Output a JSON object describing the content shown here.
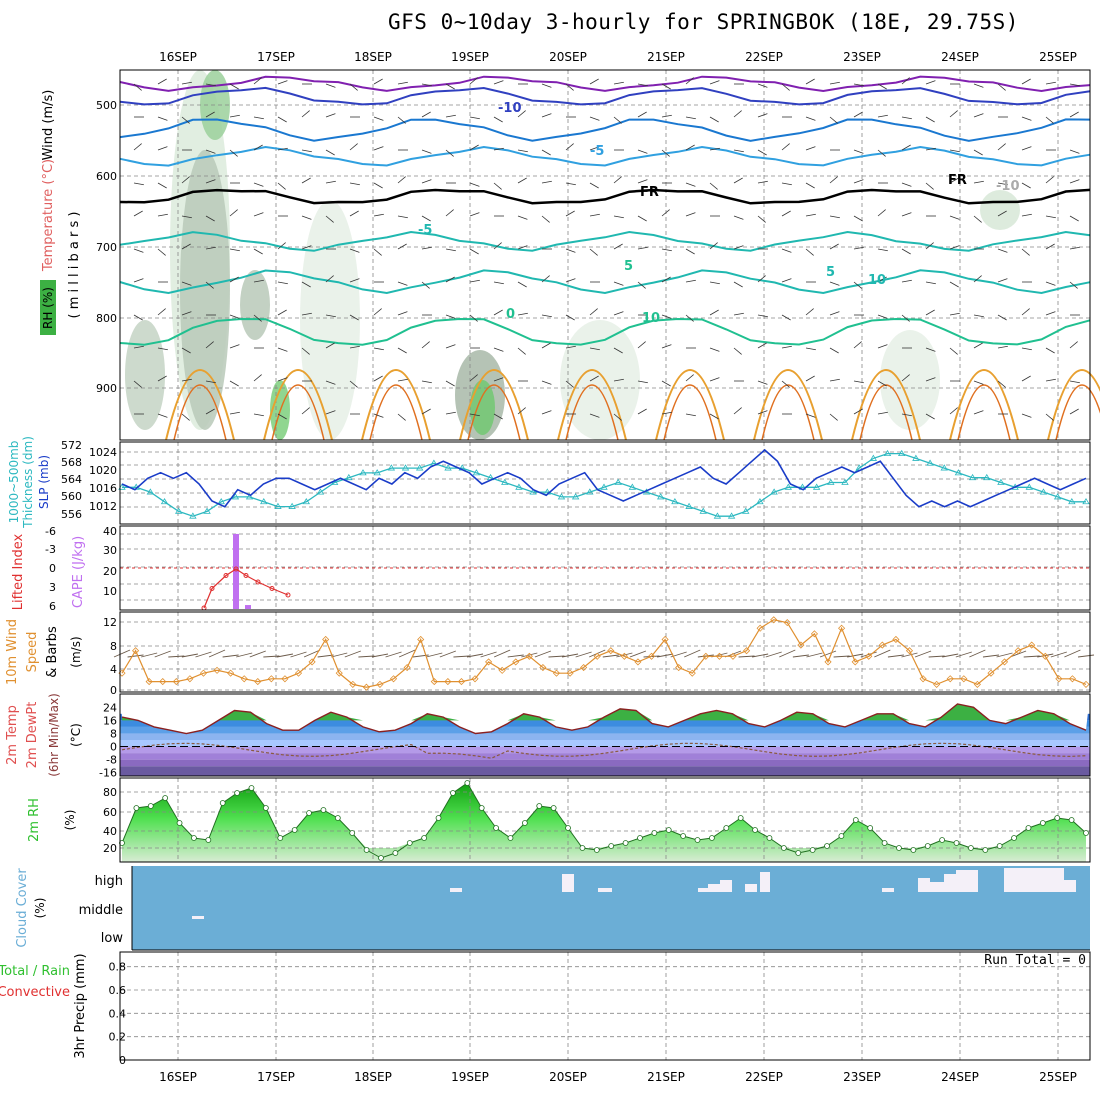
{
  "title": "GFS 0~10day 3-hourly for SPRINGBOK (18E, 29.75S)",
  "colors": {
    "wind_axis": "#000000",
    "temp_axis": "#e06060",
    "rh_bg": "#3cb043",
    "slp": "#1a3cc8",
    "thickness": "#2cb8c0",
    "lifted": "#e03030",
    "cape": "#c070f0",
    "wind10": "#e09030",
    "rh2m": "#30c030",
    "cloud": "#6baed6",
    "precip_total": "#30c030",
    "precip_conv": "#e03030"
  },
  "dates": [
    "16SEP",
    "17SEP",
    "18SEP",
    "19SEP",
    "20SEP",
    "21SEP",
    "22SEP",
    "23SEP",
    "24SEP",
    "25SEP"
  ],
  "panels": {
    "upper": {
      "ylabel_wind": "Wind (m/s)",
      "ylabel_temp": "Temperature (°C)",
      "ylabel_rh": "RH (%)",
      "ylabel_p": "( m i l l i b a r s )",
      "yticks": [
        "500",
        "600",
        "700",
        "800",
        "900"
      ],
      "contour_labels": [
        "-10",
        "-5",
        "FR",
        "FR",
        "-10",
        "-5",
        "5",
        "10",
        "0",
        "10",
        "5"
      ]
    },
    "slp": {
      "ylabel_thk": "1000~500mb",
      "ylabel_thk2": "Thickness (dm)",
      "ylabel_slp": "SLP (mb)",
      "yticks_left": [
        "572",
        "568",
        "564",
        "560",
        "556"
      ],
      "yticks_right": [
        "1024",
        "1020",
        "1016",
        "1012"
      ]
    },
    "cape": {
      "ylabel_li": "Lifted Index",
      "ylabel_cape": "CAPE (J/kg)",
      "yticks_left": [
        "-6",
        "-3",
        "0",
        "3",
        "6"
      ],
      "yticks_right": [
        "40",
        "30",
        "20",
        "10"
      ]
    },
    "wind10": {
      "ylabel1": "10m Wind",
      "ylabel2": "Speed",
      "ylabel3": "& Barbs",
      "ylabel4": "(m/s)",
      "yticks": [
        "12",
        "8",
        "4",
        "0"
      ]
    },
    "temp": {
      "ylabel1": "2m Temp",
      "ylabel2": "2m DewPt",
      "ylabel3": "(6hr Min/Max)",
      "ylabel4": "(°C)",
      "yticks": [
        "24",
        "16",
        "8",
        "0",
        "-8",
        "-16"
      ]
    },
    "rh": {
      "ylabel1": "2m RH",
      "ylabel2": "(%)",
      "yticks": [
        "80",
        "60",
        "40",
        "20"
      ]
    },
    "cloud": {
      "ylabel1": "Cloud Cover",
      "ylabel2": "(%)",
      "levels": [
        "high",
        "middle",
        "low"
      ]
    },
    "precip": {
      "ylabel1": "3hr Precip (mm)",
      "ylabel2": "Total / Rain",
      "ylabel3": "Convective",
      "run_total": "Run Total = 0",
      "yticks": [
        "0.8",
        "0.6",
        "0.4",
        "0.2",
        "0"
      ]
    }
  },
  "chart_data": [
    {
      "type": "line",
      "name": "slp",
      "series": [
        {
          "name": "SLP (mb)",
          "values": [
            1018,
            1017,
            1019,
            1020,
            1019,
            1020,
            1018,
            1015,
            1014,
            1017,
            1016,
            1018,
            1019,
            1019,
            1018,
            1017,
            1018,
            1019,
            1018,
            1017,
            1019,
            1018,
            1020,
            1019,
            1021,
            1022,
            1021,
            1020,
            1018,
            1019,
            1020,
            1019,
            1017,
            1016,
            1018,
            1019,
            1020,
            1017,
            1016,
            1015,
            1016,
            1017,
            1018,
            1019,
            1020,
            1021,
            1019,
            1018,
            1020,
            1022,
            1024,
            1022,
            1018,
            1017,
            1019,
            1020,
            1021,
            1020,
            1021,
            1022,
            1019,
            1016,
            1014,
            1015,
            1014,
            1015,
            1014,
            1015,
            1016,
            1017,
            1018,
            1019,
            1018,
            1017,
            1018,
            1019
          ]
        }
      ]
    },
    {
      "type": "line",
      "name": "thickness",
      "series": [
        {
          "name": "Thickness (dm)",
          "values": [
            563,
            563,
            562,
            560,
            558,
            557,
            558,
            560,
            561,
            561,
            560,
            559,
            559,
            560,
            562,
            564,
            565,
            566,
            566,
            567,
            567,
            567,
            568,
            567,
            567,
            566,
            565,
            564,
            563,
            562,
            562,
            561,
            561,
            562,
            563,
            564,
            563,
            562,
            561,
            560,
            559,
            558,
            557,
            557,
            558,
            560,
            562,
            563,
            563,
            563,
            564,
            564,
            567,
            569,
            570,
            570,
            569,
            568,
            567,
            566,
            565,
            565,
            564,
            563,
            563,
            562,
            561,
            560,
            560
          ]
        }
      ]
    },
    {
      "type": "bar",
      "name": "cape",
      "x": [
        "16SEP 15z",
        "16SEP 18z"
      ],
      "values": [
        38,
        2
      ]
    },
    {
      "type": "line",
      "name": "lifted_index",
      "x_range": [
        "16SEP 06z",
        "17SEP 12z"
      ],
      "values": [
        6,
        3,
        1,
        0,
        1,
        2,
        3,
        4
      ]
    },
    {
      "type": "line",
      "name": "wind10_speed",
      "values": [
        3,
        7,
        1.5,
        1.5,
        1.5,
        2,
        3,
        3.5,
        3,
        2,
        1.5,
        2,
        2,
        3,
        5,
        9,
        3,
        1,
        0.5,
        1,
        2,
        4,
        9,
        1.5,
        1.5,
        1.5,
        2,
        5,
        3.5,
        5,
        6,
        4,
        3,
        3,
        4,
        6,
        7,
        6,
        5,
        6,
        9,
        4,
        3,
        6,
        6,
        6,
        7,
        11,
        12.5,
        12,
        8,
        10,
        5,
        11,
        5,
        6,
        8,
        9,
        7,
        2,
        1,
        2,
        2,
        1,
        3,
        5,
        7,
        8,
        6,
        2,
        2,
        1
      ]
    },
    {
      "type": "area",
      "name": "temp2m",
      "values": [
        18,
        16,
        12,
        10,
        8,
        10,
        16,
        22,
        21,
        14,
        10,
        10,
        16,
        21,
        18,
        12,
        9,
        10,
        14,
        20,
        18,
        12,
        8,
        9,
        14,
        20,
        18,
        12,
        10,
        12,
        18,
        23,
        22,
        14,
        12,
        16,
        20,
        22,
        20,
        14,
        12,
        16,
        21,
        20,
        14,
        12,
        16,
        20,
        20,
        14,
        12,
        18,
        26,
        24,
        16,
        14,
        18,
        22,
        20,
        14,
        10
      ]
    },
    {
      "type": "area",
      "name": "rh2m",
      "values": [
        25,
        60,
        62,
        70,
        45,
        30,
        28,
        65,
        75,
        80,
        60,
        30,
        38,
        55,
        58,
        50,
        35,
        18,
        10,
        15,
        25,
        30,
        50,
        75,
        85,
        60,
        40,
        30,
        45,
        62,
        60,
        40,
        20,
        18,
        22,
        25,
        30,
        35,
        38,
        32,
        28,
        30,
        40,
        50,
        38,
        30,
        20,
        15,
        18,
        22,
        32,
        48,
        40,
        25,
        20,
        18,
        22,
        28,
        25,
        20,
        18,
        22,
        30,
        40,
        45,
        50,
        48,
        35
      ]
    },
    {
      "type": "table",
      "name": "cloud_cover_high",
      "note": "mostly clear; high cloud near 20SEP, 22SEP and 24SEP-25SEP"
    },
    {
      "type": "bar",
      "name": "precip_3hr",
      "values": [
        0
      ],
      "ylim": [
        0,
        0.9
      ]
    }
  ]
}
